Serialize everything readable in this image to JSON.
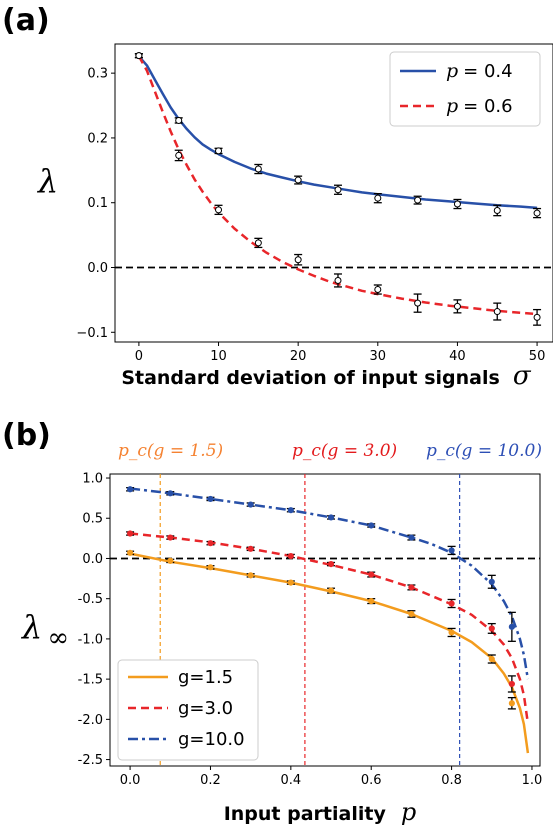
{
  "panels": {
    "a": {
      "label": "(a)",
      "ylabel_symbol": "λ",
      "xlabel_text": "Standard deviation of input signals",
      "xlabel_symbol": "σ"
    },
    "b": {
      "label": "(b)",
      "ylabel_symbol": "λ",
      "ylabel_sub": "∞",
      "xlabel_text": "Input partiality",
      "xlabel_symbol": "p",
      "pc_labels": [
        {
          "text": "p_c(g = 1.5)",
          "color": "#f58231"
        },
        {
          "text": "p_c(g = 3.0)",
          "color": "#e31a1c"
        },
        {
          "text": "p_c(g = 10.0)",
          "color": "#2d4fb5"
        }
      ]
    }
  },
  "chart_data": [
    {
      "type": "line",
      "panel": "a",
      "xlabel": "Standard deviation of input signals σ",
      "ylabel": "λ",
      "xlim": [
        -3,
        52
      ],
      "ylim": [
        -0.115,
        0.345
      ],
      "xticks": [
        0,
        10,
        20,
        30,
        40,
        50
      ],
      "yticks": [
        -0.1,
        0.0,
        0.1,
        0.2,
        0.3
      ],
      "ytick_labels": [
        "−0.1",
        "0.0",
        "0.1",
        "0.2",
        "0.3"
      ],
      "grid": false,
      "legend_position": "top-right",
      "reference_line_y": 0.0,
      "series": [
        {
          "name": "p = 0.4",
          "legend_p": "p",
          "legend_val": "= 0.4",
          "color": "#2850a8",
          "dash": "solid",
          "curve_x": [
            0,
            1,
            2,
            3,
            4,
            5,
            6,
            7,
            8,
            9,
            10,
            12,
            14,
            16,
            18,
            20,
            22,
            24,
            26,
            28,
            30,
            33,
            36,
            39,
            42,
            45,
            48,
            50
          ],
          "curve_y": [
            0.326,
            0.312,
            0.29,
            0.268,
            0.247,
            0.229,
            0.214,
            0.201,
            0.19,
            0.182,
            0.175,
            0.163,
            0.153,
            0.145,
            0.139,
            0.133,
            0.128,
            0.124,
            0.12,
            0.116,
            0.113,
            0.109,
            0.105,
            0.102,
            0.099,
            0.096,
            0.094,
            0.092
          ],
          "points_x": [
            0,
            5,
            10,
            15,
            20,
            25,
            30,
            35,
            40,
            45,
            50
          ],
          "points_y": [
            0.327,
            0.227,
            0.18,
            0.152,
            0.135,
            0.12,
            0.107,
            0.104,
            0.098,
            0.088,
            0.084
          ],
          "errors": [
            0.003,
            0.004,
            0.004,
            0.007,
            0.006,
            0.007,
            0.007,
            0.006,
            0.007,
            0.008,
            0.007
          ]
        },
        {
          "name": "p = 0.6",
          "legend_p": "p",
          "legend_val": "= 0.6",
          "color": "#e8262a",
          "dash": "dashed",
          "curve_x": [
            0,
            1,
            2,
            3,
            4,
            5,
            6,
            7,
            8,
            9,
            10,
            12,
            14,
            16,
            18,
            20,
            22,
            24,
            26,
            28,
            30,
            33,
            36,
            39,
            42,
            45,
            48,
            50
          ],
          "curve_y": [
            0.326,
            0.304,
            0.272,
            0.24,
            0.21,
            0.182,
            0.158,
            0.136,
            0.117,
            0.1,
            0.085,
            0.06,
            0.04,
            0.023,
            0.009,
            -0.003,
            -0.013,
            -0.022,
            -0.029,
            -0.036,
            -0.041,
            -0.048,
            -0.054,
            -0.059,
            -0.063,
            -0.067,
            -0.07,
            -0.072
          ],
          "points_x": [
            0,
            5,
            10,
            15,
            20,
            25,
            30,
            35,
            40,
            45,
            50
          ],
          "points_y": [
            0.327,
            0.173,
            0.089,
            0.038,
            0.012,
            -0.02,
            -0.034,
            -0.055,
            -0.06,
            -0.068,
            -0.077
          ],
          "errors": [
            0.003,
            0.008,
            0.007,
            0.007,
            0.008,
            0.01,
            0.007,
            0.014,
            0.01,
            0.013,
            0.012
          ]
        }
      ]
    },
    {
      "type": "line",
      "panel": "b",
      "xlabel": "Input partiality p",
      "ylabel": "λ∞",
      "xlim": [
        -0.05,
        1.02
      ],
      "ylim": [
        -2.58,
        1.05
      ],
      "xticks": [
        0.0,
        0.2,
        0.4,
        0.6,
        0.8,
        1.0
      ],
      "xtick_labels": [
        "0.0",
        "0.2",
        "0.4",
        "0.6",
        "0.8",
        "1.0"
      ],
      "yticks": [
        1.0,
        0.5,
        0.0,
        -0.5,
        -1.0,
        -1.5,
        -2.0,
        -2.5
      ],
      "ytick_labels": [
        "1.0",
        "0.5",
        "0.0",
        "-0.5",
        "-1.0",
        "-1.5",
        "-2.0",
        "-2.5"
      ],
      "grid": false,
      "legend_position": "bottom-left",
      "reference_line_y": 0.0,
      "critical_p": [
        0.075,
        0.435,
        0.82
      ],
      "series": [
        {
          "name": "g=1.5",
          "color": "#f39c1e",
          "dash": "solid",
          "curve_x": [
            0,
            0.1,
            0.2,
            0.3,
            0.4,
            0.5,
            0.6,
            0.7,
            0.8,
            0.85,
            0.9,
            0.93,
            0.95,
            0.97,
            0.98,
            0.99
          ],
          "curve_y": [
            0.06,
            -0.04,
            -0.12,
            -0.21,
            -0.3,
            -0.41,
            -0.53,
            -0.69,
            -0.9,
            -1.04,
            -1.24,
            -1.43,
            -1.6,
            -1.86,
            -2.06,
            -2.42
          ],
          "points_x": [
            0.0,
            0.1,
            0.2,
            0.3,
            0.4,
            0.5,
            0.6,
            0.7,
            0.8,
            0.9,
            0.95
          ],
          "points_y": [
            0.07,
            -0.03,
            -0.11,
            -0.21,
            -0.3,
            -0.4,
            -0.53,
            -0.69,
            -0.92,
            -1.25,
            -1.8
          ],
          "errors": [
            0.02,
            0.02,
            0.02,
            0.02,
            0.02,
            0.03,
            0.03,
            0.04,
            0.05,
            0.05,
            0.07
          ]
        },
        {
          "name": "g=3.0",
          "color": "#e8262a",
          "dash": "dashed",
          "curve_x": [
            0,
            0.1,
            0.2,
            0.3,
            0.4,
            0.5,
            0.6,
            0.7,
            0.8,
            0.85,
            0.9,
            0.93,
            0.95,
            0.97,
            0.98,
            0.99
          ],
          "curve_y": [
            0.31,
            0.26,
            0.2,
            0.12,
            0.03,
            -0.08,
            -0.2,
            -0.36,
            -0.57,
            -0.7,
            -0.9,
            -1.07,
            -1.24,
            -1.5,
            -1.7,
            -2.05
          ],
          "points_x": [
            0.0,
            0.1,
            0.2,
            0.3,
            0.4,
            0.5,
            0.6,
            0.7,
            0.8,
            0.9,
            0.95
          ],
          "points_y": [
            0.31,
            0.26,
            0.19,
            0.12,
            0.03,
            -0.07,
            -0.2,
            -0.36,
            -0.56,
            -0.87,
            -1.56
          ],
          "errors": [
            0.02,
            0.02,
            0.02,
            0.02,
            0.02,
            0.02,
            0.03,
            0.03,
            0.05,
            0.06,
            0.1
          ]
        },
        {
          "name": "g=10.0",
          "color": "#2850a8",
          "dash": "dashdot",
          "curve_x": [
            0,
            0.1,
            0.2,
            0.3,
            0.4,
            0.5,
            0.6,
            0.7,
            0.75,
            0.8,
            0.85,
            0.9,
            0.93,
            0.95,
            0.97,
            0.98,
            0.99
          ],
          "curve_y": [
            0.87,
            0.81,
            0.74,
            0.67,
            0.6,
            0.51,
            0.41,
            0.26,
            0.18,
            0.07,
            -0.09,
            -0.32,
            -0.53,
            -0.72,
            -1.0,
            -1.2,
            -1.5
          ],
          "points_x": [
            0.0,
            0.1,
            0.2,
            0.3,
            0.4,
            0.5,
            0.6,
            0.7,
            0.8,
            0.9,
            0.95
          ],
          "points_y": [
            0.86,
            0.81,
            0.74,
            0.67,
            0.6,
            0.51,
            0.41,
            0.26,
            0.1,
            -0.29,
            -0.85
          ],
          "errors": [
            0.02,
            0.02,
            0.02,
            0.02,
            0.02,
            0.02,
            0.02,
            0.03,
            0.05,
            0.08,
            0.18
          ]
        }
      ]
    }
  ]
}
